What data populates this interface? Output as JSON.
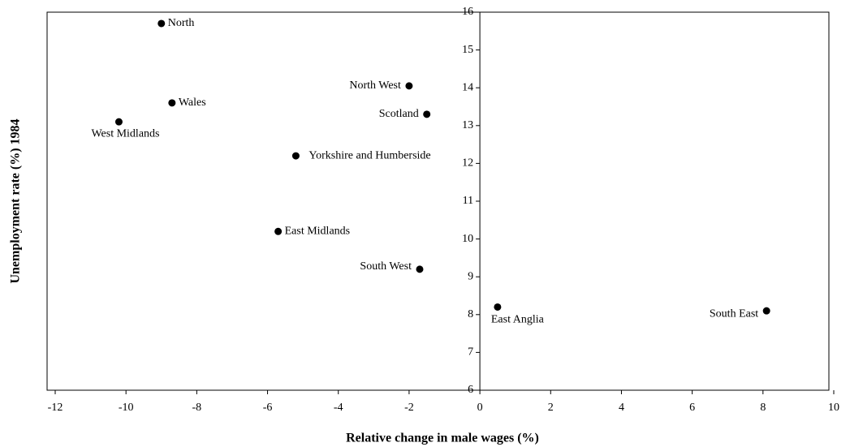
{
  "chart_data": {
    "type": "scatter",
    "xlabel": "Relative change in male wages (%)",
    "ylabel": "Unemployment rate (%) 1984",
    "labels": [
      "North",
      "Wales",
      "West Midlands",
      "Yorkshire and Humberside",
      "East Midlands",
      "North West",
      "Scotland",
      "South West",
      "East Anglia",
      "South East"
    ],
    "x": [
      -9.0,
      -8.7,
      -10.2,
      -5.2,
      -5.7,
      -2.0,
      -1.5,
      -1.7,
      0.5,
      8.1
    ],
    "values": [
      15.7,
      13.6,
      13.1,
      12.2,
      10.2,
      14.05,
      13.3,
      9.2,
      8.2,
      8.1
    ],
    "color": "#000000",
    "xlim": [
      -12,
      10
    ],
    "xticks": [
      -12,
      -10,
      -8,
      -6,
      -4,
      -2,
      0,
      2,
      4,
      6,
      8,
      10
    ],
    "ylim": [
      6,
      16
    ],
    "yticks": [
      6,
      7,
      8,
      9,
      10,
      11,
      12,
      13,
      14,
      15,
      16
    ]
  }
}
